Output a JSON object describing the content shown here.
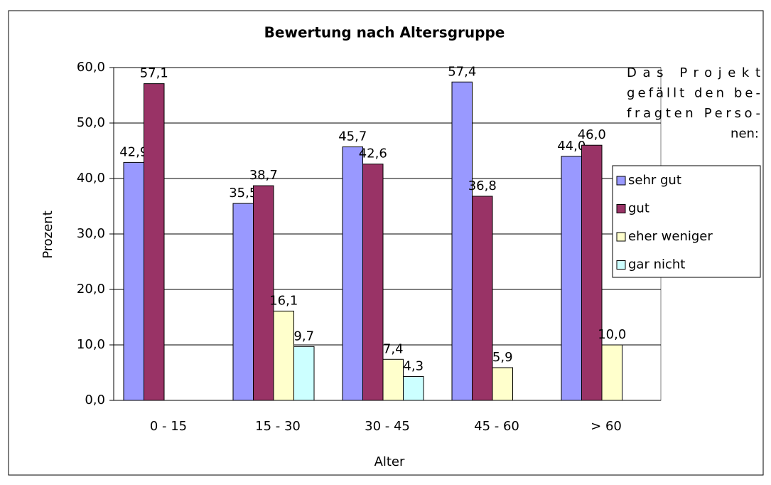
{
  "chart_data": {
    "type": "bar",
    "title": "Bewertung nach Altersgruppe",
    "xlabel": "Alter",
    "ylabel": "Prozent",
    "legend_title": [
      "Das Projekt",
      "gefällt den be-",
      "fragten Perso-",
      "nen:"
    ],
    "categories": [
      "0 - 15",
      "15 - 30",
      "30 - 45",
      "45 - 60",
      "> 60"
    ],
    "series": [
      {
        "name": "sehr gut",
        "color": "#9999ff",
        "values": [
          42.9,
          35.5,
          45.7,
          57.4,
          44.0
        ],
        "value_labels": [
          "42,9",
          "35,5",
          "45,7",
          "57,4",
          "44,0"
        ]
      },
      {
        "name": "gut",
        "color": "#993366",
        "values": [
          57.1,
          38.7,
          42.6,
          36.8,
          46.0
        ],
        "value_labels": [
          "57,1",
          "38,7",
          "42,6",
          "36,8",
          "46,0"
        ]
      },
      {
        "name": "eher weniger",
        "color": "#ffffcc",
        "values": [
          null,
          16.1,
          7.4,
          5.9,
          10.0
        ],
        "value_labels": [
          null,
          "16,1",
          "7,4",
          "5,9",
          "10,0"
        ]
      },
      {
        "name": "gar nicht",
        "color": "#ccffff",
        "values": [
          null,
          9.7,
          4.3,
          null,
          null
        ],
        "value_labels": [
          null,
          "9,7",
          "4,3",
          null,
          null
        ]
      }
    ],
    "ylim": [
      0,
      60
    ],
    "yticks": [
      {
        "value": 0,
        "label": "0,0"
      },
      {
        "value": 10,
        "label": "10,0"
      },
      {
        "value": 20,
        "label": "20,0"
      },
      {
        "value": 30,
        "label": "30,0"
      },
      {
        "value": 40,
        "label": "40,0"
      },
      {
        "value": 50,
        "label": "50,0"
      },
      {
        "value": 60,
        "label": "60,0"
      }
    ],
    "grid": true,
    "legend": "right"
  }
}
